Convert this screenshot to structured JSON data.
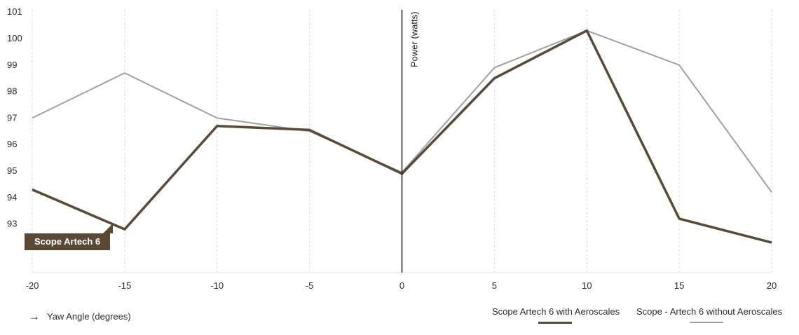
{
  "chart_data": {
    "type": "line",
    "xlabel": "Yaw Angle (degrees)",
    "ylabel": "Power (watts)",
    "x": [
      -20,
      -15,
      -10,
      -5,
      0,
      5,
      10,
      15,
      20
    ],
    "xlim": [
      -20,
      20
    ],
    "ylim": [
      92,
      101
    ],
    "xticks": [
      "-20",
      "-15",
      "-10",
      "-5",
      "0",
      "5",
      "10",
      "15",
      "20"
    ],
    "yticks": [
      "93",
      "94",
      "95",
      "96",
      "97",
      "98",
      "99",
      "100",
      "101"
    ],
    "grid": "vertical dashed",
    "legend": "bottom-right",
    "series": [
      {
        "name": "Scope Artech 6 with Aeroscales",
        "color": "#5a4a35",
        "values": [
          94.3,
          92.8,
          96.7,
          96.55,
          94.9,
          98.5,
          100.3,
          93.2,
          92.3
        ]
      },
      {
        "name": "Scope - Artech 6 without Aeroscales",
        "color": "#98a3a6",
        "values": [
          97.0,
          98.7,
          97.0,
          96.5,
          94.95,
          98.9,
          100.3,
          99.0,
          94.2
        ]
      }
    ],
    "annotation": "Scope Artech 6"
  }
}
